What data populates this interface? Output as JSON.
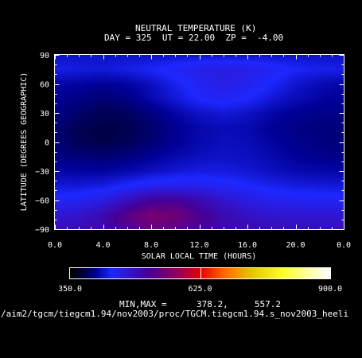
{
  "chart_data": {
    "type": "heatmap",
    "title": "NEUTRAL TEMPERATURE (K)",
    "subtitle": "DAY = 325  UT = 22.00  ZP =  -4.00",
    "xlabel": "SOLAR LOCAL TIME (HOURS)",
    "ylabel": "LATITUDE (DEGREES GEOGRAPHIC)",
    "xlim": [
      0,
      24
    ],
    "ylim": [
      -90,
      90
    ],
    "xticks": [
      "0.0",
      "4.0",
      "8.0",
      "12.0",
      "16.0",
      "20.0",
      "0.0"
    ],
    "yticks": [
      "90",
      "60",
      "30",
      "0",
      "−30",
      "−60",
      "−90"
    ],
    "x": [
      0,
      2,
      4,
      6,
      8,
      10,
      12,
      14,
      16,
      18,
      20,
      22,
      24
    ],
    "y": [
      90,
      75,
      60,
      45,
      30,
      15,
      0,
      -15,
      -30,
      -45,
      -60,
      -75,
      -90
    ],
    "values": [
      [
        420,
        420,
        420,
        420,
        420,
        420,
        420,
        420,
        420,
        420,
        420,
        420,
        420
      ],
      [
        430,
        428,
        426,
        430,
        436,
        445,
        455,
        460,
        456,
        446,
        436,
        432,
        430
      ],
      [
        410,
        408,
        405,
        408,
        418,
        432,
        448,
        458,
        450,
        436,
        422,
        414,
        410
      ],
      [
        405,
        400,
        395,
        400,
        412,
        425,
        440,
        445,
        438,
        425,
        415,
        408,
        405
      ],
      [
        400,
        392,
        385,
        388,
        398,
        410,
        420,
        425,
        420,
        410,
        404,
        402,
        400
      ],
      [
        395,
        385,
        380,
        383,
        392,
        403,
        412,
        415,
        413,
        405,
        400,
        397,
        395
      ],
      [
        395,
        385,
        382,
        386,
        394,
        405,
        412,
        417,
        415,
        408,
        402,
        398,
        395
      ],
      [
        400,
        396,
        394,
        398,
        405,
        412,
        418,
        420,
        418,
        412,
        406,
        402,
        400
      ],
      [
        410,
        408,
        408,
        412,
        418,
        424,
        428,
        428,
        424,
        418,
        413,
        411,
        410
      ],
      [
        425,
        425,
        428,
        438,
        448,
        452,
        450,
        444,
        438,
        432,
        428,
        426,
        425
      ],
      [
        445,
        448,
        460,
        485,
        510,
        512,
        495,
        475,
        460,
        450,
        447,
        446,
        445
      ],
      [
        470,
        475,
        495,
        530,
        557,
        550,
        520,
        495,
        480,
        472,
        470,
        470,
        470
      ],
      [
        490,
        495,
        505,
        525,
        540,
        535,
        518,
        503,
        495,
        492,
        490,
        490,
        490
      ]
    ],
    "colorbar": {
      "min": 350,
      "max": 900,
      "labels": [
        "350.0",
        "625.0",
        "900.0"
      ],
      "label_values": [
        350,
        625,
        900
      ]
    },
    "minmax_label": "MIN,MAX =",
    "minmax_values": "378.2,     557.2",
    "source_path": "/aim2/tgcm/tiegcm1.94/nov2003/proc/TGCM.tiegcm1.94.s_nov2003_heeli"
  }
}
